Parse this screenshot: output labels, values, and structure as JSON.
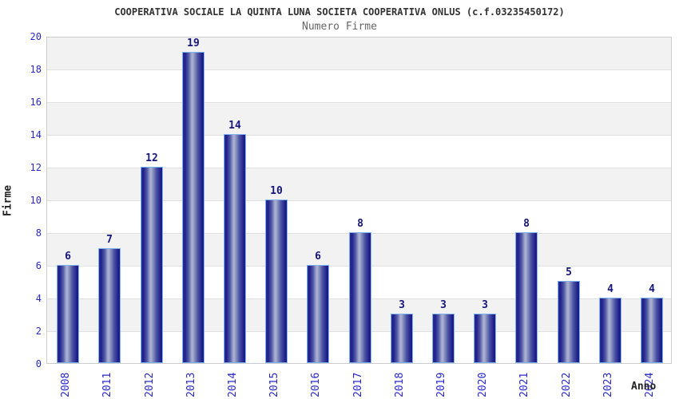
{
  "chart_data": {
    "type": "bar",
    "title": "COOPERATIVA SOCIALE LA QUINTA LUNA SOCIETA COOPERATIVA ONLUS (c.f.03235450172)",
    "subtitle": "Numero Firme",
    "xlabel": "Anno",
    "ylabel": "Firme",
    "categories": [
      "2008",
      "2011",
      "2012",
      "2013",
      "2014",
      "2015",
      "2016",
      "2017",
      "2018",
      "2019",
      "2020",
      "2021",
      "2022",
      "2023",
      "2024"
    ],
    "values": [
      6,
      7,
      12,
      19,
      14,
      10,
      6,
      8,
      3,
      3,
      3,
      8,
      5,
      4,
      4
    ],
    "ylim": [
      0,
      20
    ],
    "ytick_step": 2,
    "yticks": [
      0,
      2,
      4,
      6,
      8,
      10,
      12,
      14,
      16,
      18,
      20
    ],
    "grid": "horizontal-bands-alternating",
    "legend": "none",
    "colors": {
      "bar_dark": "#20208c",
      "bar_light": "#aeb4d6",
      "bar_border": "#7db4f0",
      "value_label": "#16167d",
      "tick_label": "#2828cc",
      "title": "#333333",
      "subtitle": "#666666",
      "axis_title": "#222222",
      "band": "#f2f2f2",
      "grid_line": "#e0e0e0",
      "plot_border": "#cccccc",
      "background": "#ffffff"
    }
  }
}
